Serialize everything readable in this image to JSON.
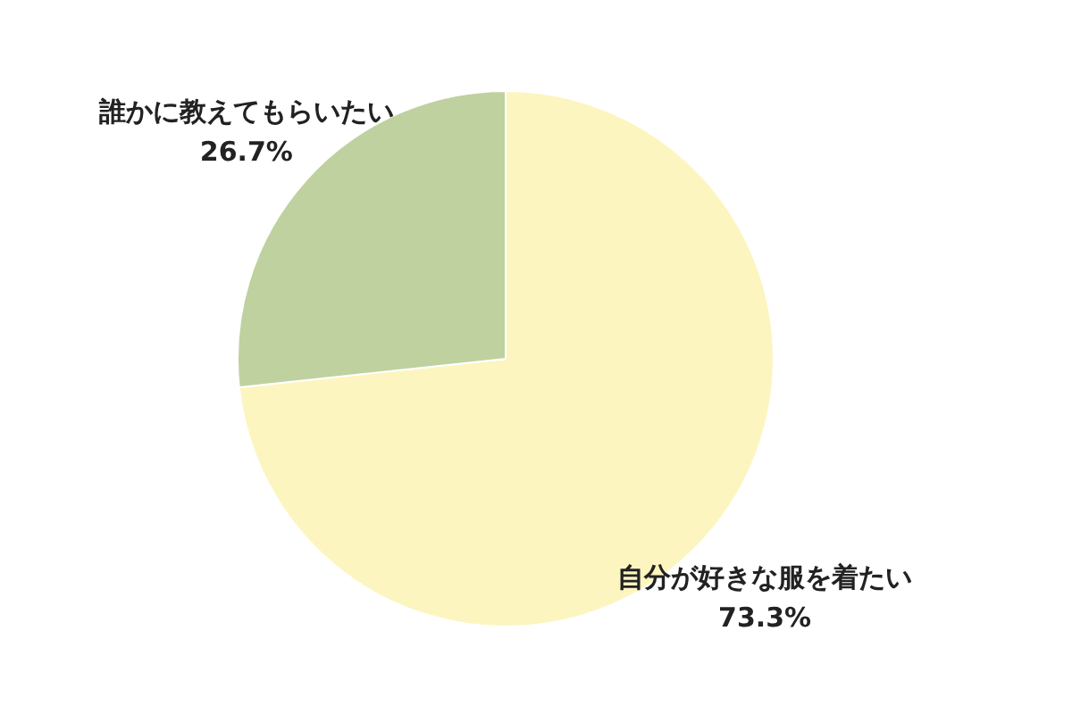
{
  "chart_data": {
    "type": "pie",
    "categories": [
      "自分が好きな服を着たい",
      "誰かに教えてもらいたい"
    ],
    "values": [
      73.3,
      26.7
    ],
    "colors": [
      "#fdf5c0",
      "#bfd19f"
    ],
    "value_labels": [
      "73.3%",
      "26.7%"
    ],
    "legend": false
  }
}
